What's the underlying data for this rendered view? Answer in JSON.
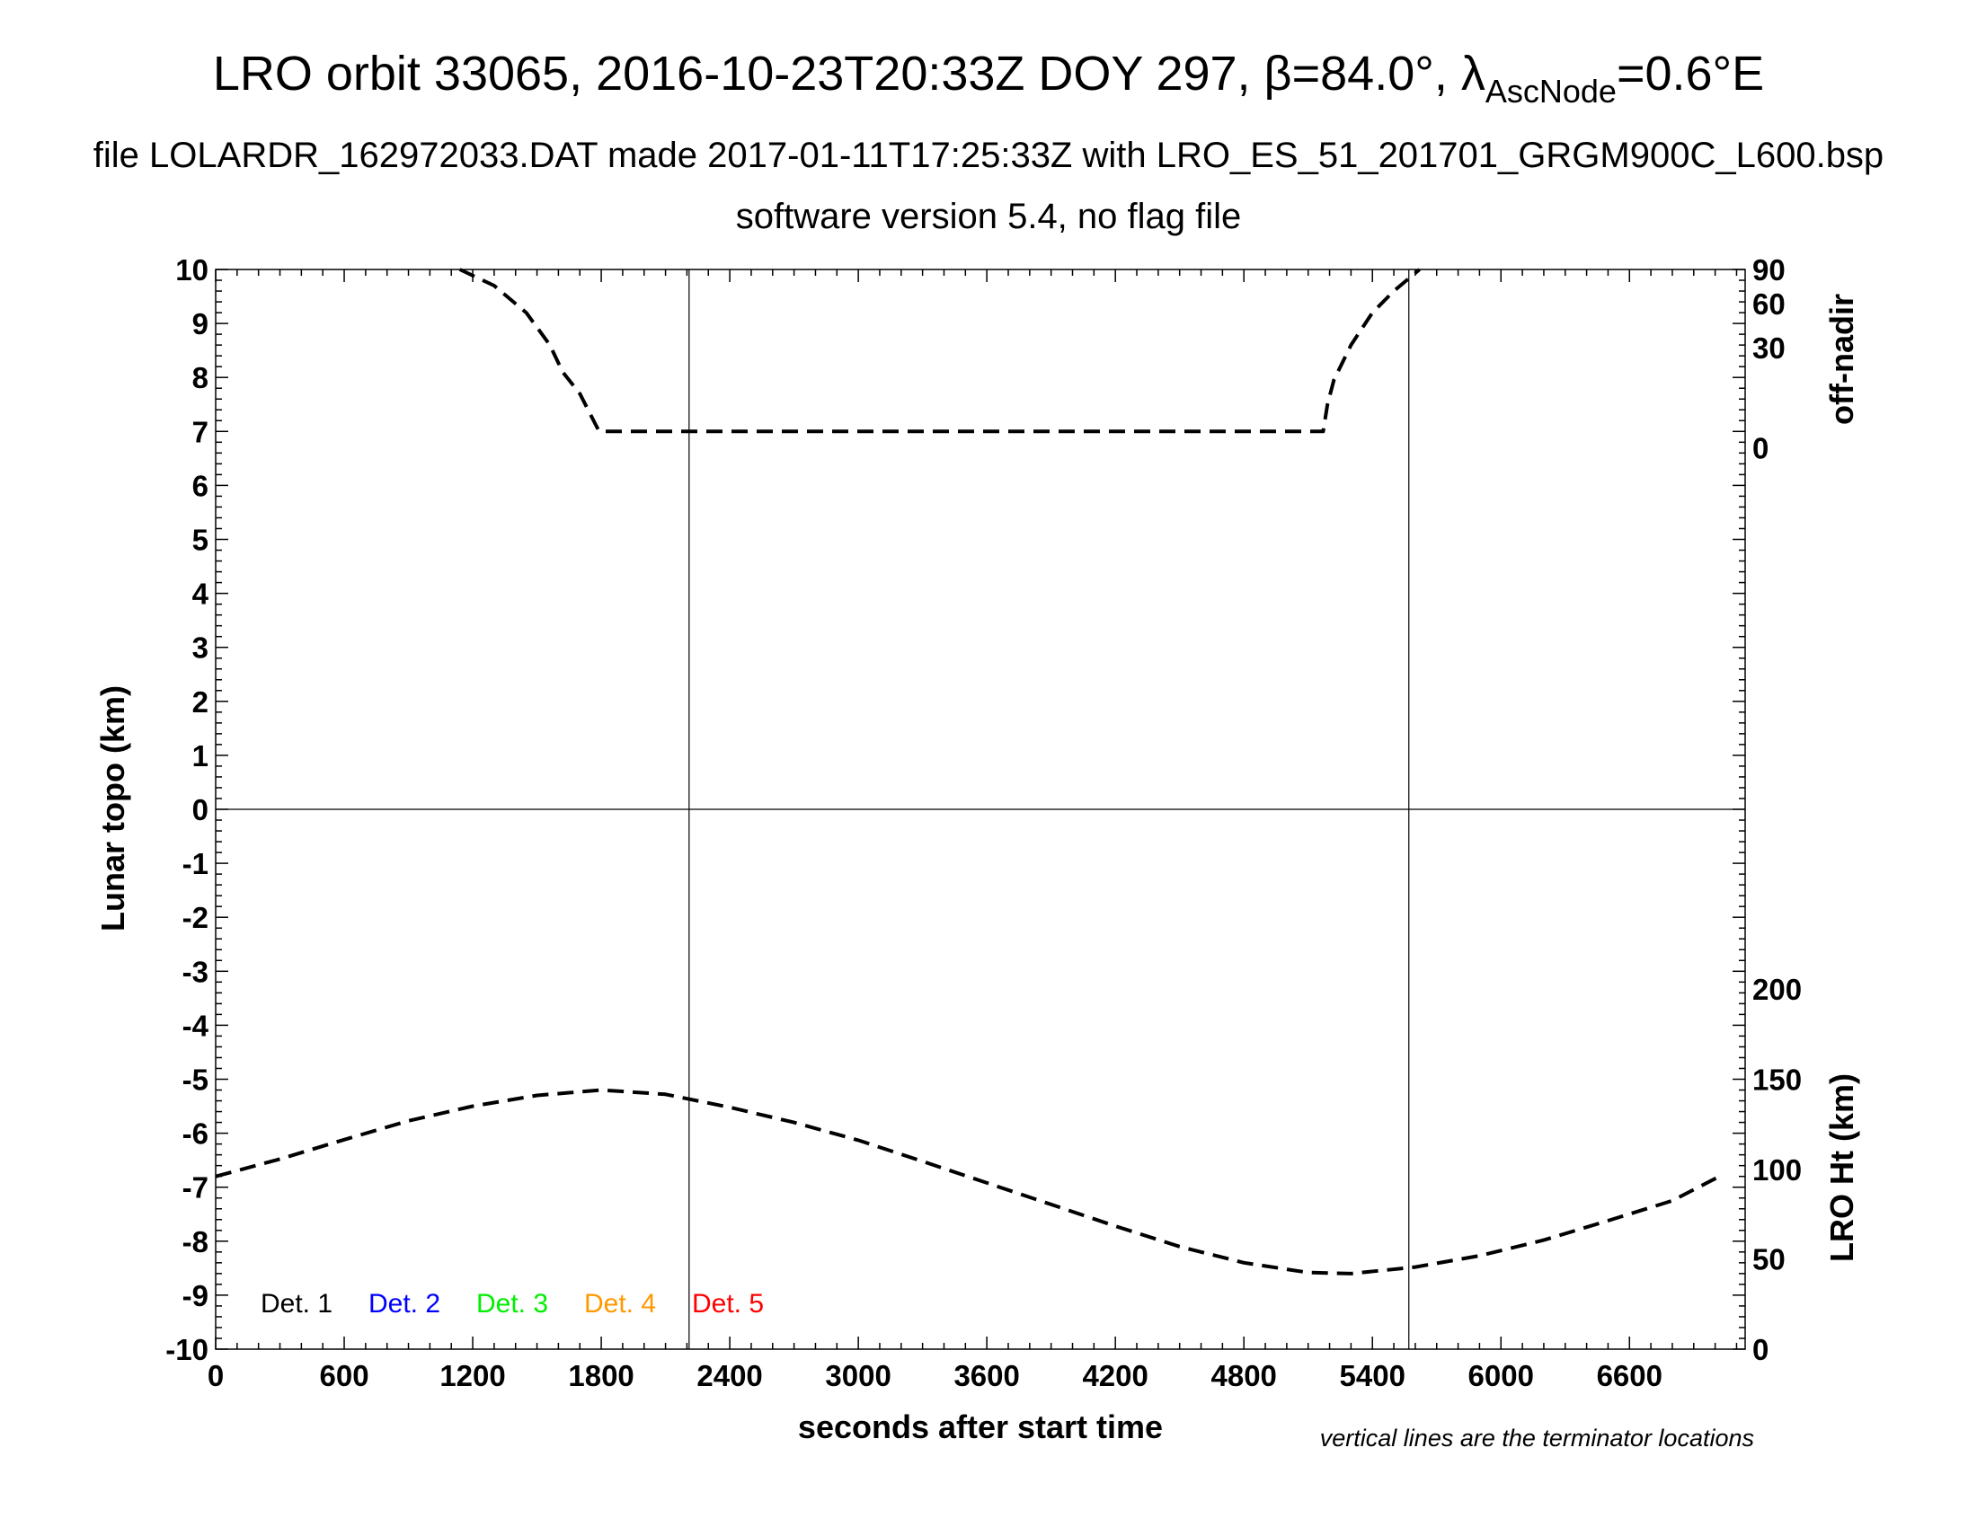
{
  "chart_data": {
    "type": "line",
    "title": {
      "main": "LRO orbit 33065, 2016-10-23T20:33Z DOY 297, β=84.0°, λ",
      "sub": "AscNode",
      "end": "=0.6°E"
    },
    "subtitle1": "file LOLARDR_162972033.DAT made 2017-01-11T17:25:33Z with LRO_ES_51_201701_GRGM900C_L600.bsp",
    "subtitle2": "software version 5.4, no flag file",
    "xlabel": "seconds after start time",
    "ylabel": "Lunar topo (km)",
    "y2label_top": "off-nadir",
    "y2label_bottom": "LRO Ht (km)",
    "note": "vertical lines are the terminator locations",
    "xlim": [
      0,
      7140
    ],
    "ylim": [
      -10,
      10
    ],
    "x_ticks": [
      0,
      600,
      1200,
      1800,
      2400,
      3000,
      3600,
      4200,
      4800,
      5400,
      6000,
      6600
    ],
    "y_ticks": [
      10,
      9,
      8,
      7,
      6,
      5,
      4,
      3,
      2,
      1,
      0,
      -1,
      -2,
      -3,
      -4,
      -5,
      -6,
      -7,
      -8,
      -9,
      -10
    ],
    "offnadir_ticks": [
      {
        "label": "90",
        "y": 10
      },
      {
        "label": "60",
        "y": 9.37
      },
      {
        "label": "30",
        "y": 8.55
      },
      {
        "label": "0",
        "y": 6.7
      }
    ],
    "height_ticks": [
      {
        "label": "200",
        "y": -3.33
      },
      {
        "label": "150",
        "y": -5.0
      },
      {
        "label": "100",
        "y": -6.67
      },
      {
        "label": "50",
        "y": -8.33
      },
      {
        "label": "0",
        "y": -10
      }
    ],
    "terminators": [
      2210,
      5570
    ],
    "grid": false,
    "series": [
      {
        "name": "off-nadir",
        "color": "#000000",
        "x": [
          1140,
          1300,
          1450,
          1560,
          1620,
          1700,
          1790,
          2400,
          3000,
          3600,
          4200,
          4800,
          5170,
          5190,
          5220,
          5300,
          5400,
          5500,
          5620
        ],
        "y": [
          10,
          9.7,
          9.2,
          8.6,
          8.1,
          7.7,
          7.0,
          7.0,
          7.0,
          7.0,
          7.0,
          7.0,
          7.0,
          7.5,
          7.95,
          8.6,
          9.2,
          9.6,
          10
        ]
      },
      {
        "name": "LRO Ht",
        "color": "#000000",
        "x": [
          0,
          300,
          600,
          900,
          1200,
          1500,
          1800,
          2100,
          2400,
          2700,
          3000,
          3300,
          3600,
          3900,
          4200,
          4500,
          4800,
          5100,
          5300,
          5600,
          5900,
          6200,
          6500,
          6800,
          7020
        ],
        "y": [
          -6.8,
          -6.48,
          -6.12,
          -5.77,
          -5.5,
          -5.3,
          -5.2,
          -5.28,
          -5.52,
          -5.8,
          -6.13,
          -6.52,
          -6.92,
          -7.32,
          -7.72,
          -8.1,
          -8.4,
          -8.58,
          -8.6,
          -8.48,
          -8.27,
          -7.98,
          -7.62,
          -7.25,
          -6.8
        ]
      }
    ],
    "legend": [
      {
        "label": "Det. 1",
        "color": "#000000"
      },
      {
        "label": "Det. 2",
        "color": "#0000ff"
      },
      {
        "label": "Det. 3",
        "color": "#00ee00"
      },
      {
        "label": "Det. 4",
        "color": "#ff9900"
      },
      {
        "label": "Det. 5",
        "color": "#ff0000"
      }
    ]
  }
}
